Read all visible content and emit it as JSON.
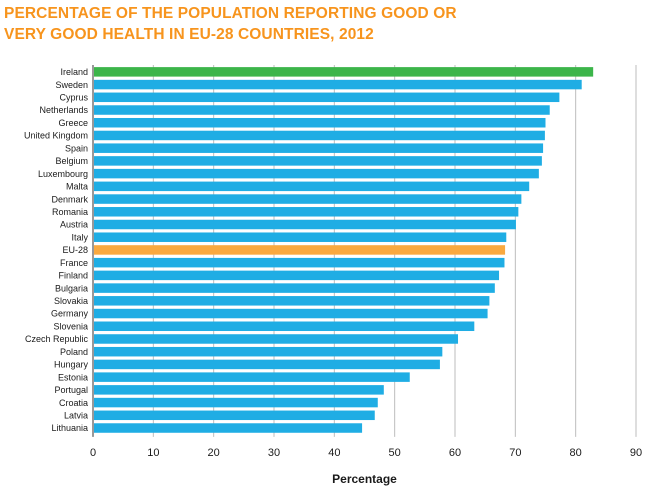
{
  "header": {
    "title_line1": "PERCENTAGE OF THE POPULATION REPORTING GOOD OR",
    "title_line2": "VERY GOOD HEALTH IN EU-28 COUNTRIES, 2012"
  },
  "colors": {
    "title": "#F7941D",
    "bar_default": "#1FADE4",
    "bar_highlight_top": "#3CB54A",
    "bar_highlight_eu": "#F9A940",
    "grid": "#bdbdbd",
    "axis": "#333333"
  },
  "chart_data": {
    "type": "bar",
    "orientation": "horizontal",
    "title": "PERCENTAGE OF THE POPULATION REPORTING GOOD OR VERY GOOD HEALTH IN EU-28 COUNTRIES, 2012",
    "xlabel": "Percentage",
    "ylabel": "",
    "xlim": [
      0,
      90
    ],
    "xticks": [
      0,
      10,
      20,
      30,
      40,
      50,
      60,
      70,
      80,
      90
    ],
    "grid": "vertical",
    "legend": "none",
    "categories": [
      "Ireland",
      "Sweden",
      "Cyprus",
      "Netherlands",
      "Greece",
      "United Kingdom",
      "Spain",
      "Belgium",
      "Luxembourg",
      "Malta",
      "Denmark",
      "Romania",
      "Austria",
      "Italy",
      "EU-28",
      "France",
      "Finland",
      "Bulgaria",
      "Slovakia",
      "Germany",
      "Slovenia",
      "Czech Republic",
      "Poland",
      "Hungary",
      "Estonia",
      "Portugal",
      "Croatia",
      "Latvia",
      "Lithuania"
    ],
    "values": [
      82.9,
      81.0,
      77.3,
      75.7,
      75.0,
      74.9,
      74.6,
      74.4,
      73.9,
      72.3,
      71.0,
      70.5,
      70.1,
      68.5,
      68.3,
      68.2,
      67.3,
      66.6,
      65.7,
      65.4,
      63.2,
      60.5,
      57.9,
      57.5,
      52.5,
      48.2,
      47.2,
      46.7,
      44.6
    ],
    "highlight": {
      "Ireland": "bar_highlight_top",
      "EU-28": "bar_highlight_eu"
    }
  }
}
